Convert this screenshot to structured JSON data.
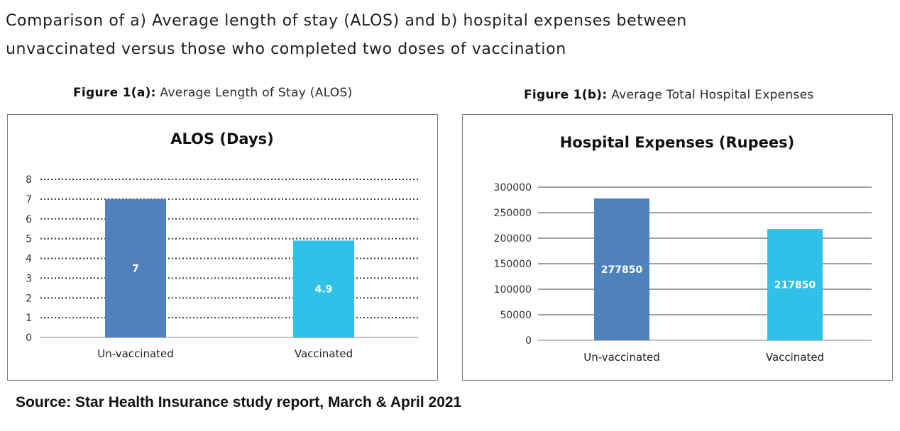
{
  "heading": {
    "line1": "Comparison of a) Average length of stay (ALOS) and b) hospital expenses between",
    "line2": "unvaccinated versus those who completed two doses of vaccination"
  },
  "figure_a": {
    "caption_bold": "Figure 1(a):",
    "caption_rest": " Average Length of Stay (ALOS)"
  },
  "figure_b": {
    "caption_bold": "Figure 1(b):",
    "caption_rest": " Average Total Hospital Expenses"
  },
  "source": "Source: Star Health Insurance study report, March & April 2021",
  "colors": {
    "unvaccinated": "#4f81bd",
    "vaccinated": "#30c0e8"
  },
  "chart_data": [
    {
      "type": "bar",
      "title": "ALOS (Days)",
      "categories": [
        "Un-vaccinated",
        "Vaccinated"
      ],
      "values": [
        7,
        4.9
      ],
      "data_labels": [
        "7",
        "4.9"
      ],
      "ylim": [
        0,
        8
      ],
      "yticks": [
        "0",
        "1",
        "2",
        "3",
        "4",
        "5",
        "6",
        "7",
        "8"
      ],
      "grid": "dotted",
      "xlabel": "",
      "ylabel": ""
    },
    {
      "type": "bar",
      "title": "Hospital Expenses (Rupees)",
      "categories": [
        "Un-vaccinated",
        "Vaccinated"
      ],
      "values": [
        277850,
        217850
      ],
      "data_labels": [
        "277850",
        "217850"
      ],
      "ylim": [
        0,
        300000
      ],
      "yticks": [
        "0",
        "50000",
        "100000",
        "150000",
        "200000",
        "250000",
        "300000"
      ],
      "grid": "solid",
      "xlabel": "",
      "ylabel": ""
    }
  ]
}
